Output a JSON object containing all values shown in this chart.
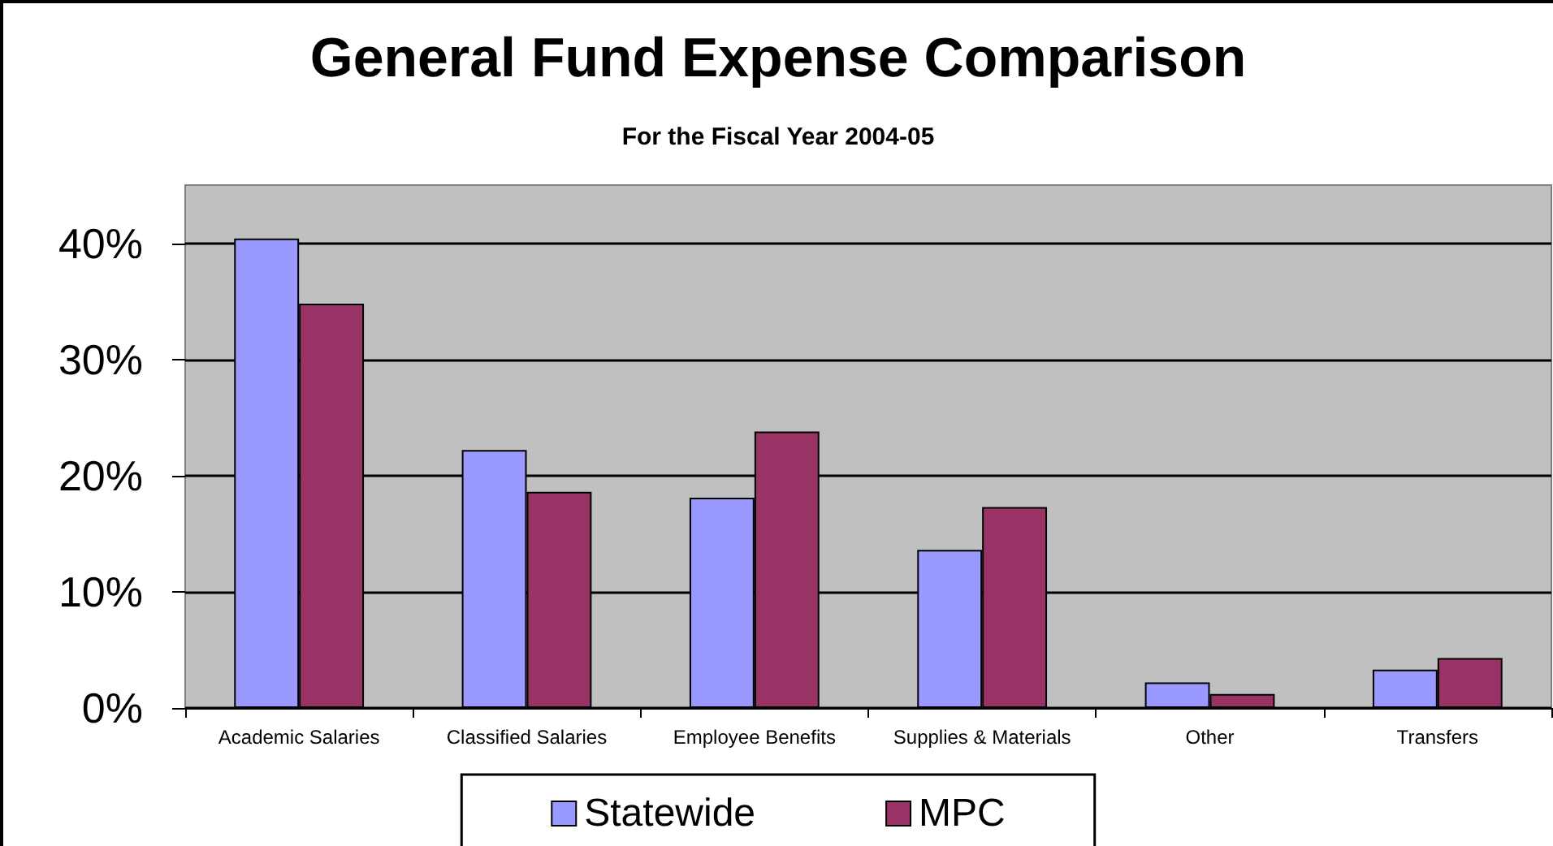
{
  "chart_data": {
    "type": "bar",
    "title": "General Fund Expense Comparison",
    "subtitle": "For the Fiscal Year 2004-05",
    "categories": [
      "Academic Salaries",
      "Classified Salaries",
      "Employee Benefits",
      "Supplies & Materials",
      "Other",
      "Transfers"
    ],
    "series": [
      {
        "name": "Statewide",
        "color": "#9999ff",
        "values": [
          40.4,
          22.2,
          18.1,
          13.6,
          2.2,
          3.3
        ]
      },
      {
        "name": "MPC",
        "color": "#993366",
        "values": [
          34.8,
          18.6,
          23.8,
          17.3,
          1.2,
          4.3
        ]
      }
    ],
    "ylim": [
      0,
      45
    ],
    "yticks": [
      {
        "value": 0,
        "label": "0%"
      },
      {
        "value": 10,
        "label": "10%"
      },
      {
        "value": 20,
        "label": "20%"
      },
      {
        "value": 30,
        "label": "30%"
      },
      {
        "value": 40,
        "label": "40%"
      }
    ],
    "grid": "y",
    "legend": "bottom"
  }
}
